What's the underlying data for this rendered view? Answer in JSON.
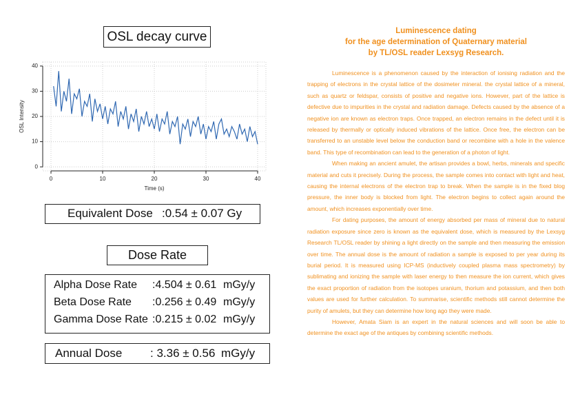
{
  "chart_data": {
    "type": "line",
    "title": "OSL decay curve",
    "x_label": "Time (s)",
    "y_label": "OSL Intensity",
    "x": [
      0.5,
      1,
      1.5,
      2,
      2.5,
      3,
      3.5,
      4,
      4.5,
      5,
      5.5,
      6,
      6.5,
      7,
      7.5,
      8,
      8.5,
      9,
      9.5,
      10,
      10.5,
      11,
      11.5,
      12,
      12.5,
      13,
      13.5,
      14,
      14.5,
      15,
      15.5,
      16,
      16.5,
      17,
      17.5,
      18,
      18.5,
      19,
      19.5,
      20,
      20.5,
      21,
      21.5,
      22,
      22.5,
      23,
      23.5,
      24,
      24.5,
      25,
      25.5,
      26,
      26.5,
      27,
      27.5,
      28,
      28.5,
      29,
      29.5,
      30,
      30.5,
      31,
      31.5,
      32,
      32.5,
      33,
      33.5,
      34,
      34.5,
      35,
      35.5,
      36,
      36.5,
      37,
      37.5,
      38,
      38.5,
      39,
      39.5,
      40
    ],
    "values": [
      32,
      24,
      38,
      22,
      30,
      26,
      35,
      21,
      29,
      27,
      31,
      20,
      26,
      24,
      29,
      18,
      27,
      22,
      25,
      19,
      24,
      17,
      23,
      21,
      26,
      16,
      22,
      19,
      24,
      15,
      21,
      18,
      23,
      14,
      20,
      17,
      22,
      16,
      19,
      15,
      21,
      14,
      19,
      17,
      22,
      13,
      18,
      16,
      20,
      9,
      17,
      15,
      19,
      12,
      18,
      16,
      20,
      13,
      17,
      11,
      16,
      14,
      18,
      11,
      17,
      19,
      13,
      15,
      12,
      16,
      14,
      11,
      17,
      13,
      15,
      10,
      16,
      12,
      14,
      9
    ],
    "color": "#2e67b1",
    "xlim": [
      -1.6,
      41.6
    ],
    "ylim": [
      -1.6,
      41.6
    ],
    "xticks": [
      0,
      10,
      20,
      30,
      40
    ],
    "yticks": [
      0,
      10,
      20,
      30,
      40
    ],
    "grid": true
  },
  "equivalent_dose": {
    "label": "Equivalent Dose",
    "value": ":0.54 ± 0.07 Gy"
  },
  "dose_rate": {
    "title": "Dose Rate",
    "rows": [
      {
        "label": "Alpha Dose Rate",
        "value": ":4.504 ± 0.61",
        "unit": "mGy/y"
      },
      {
        "label": "Beta Dose Rate",
        "value": ":0.256 ± 0.49",
        "unit": "mGy/y"
      },
      {
        "label": "Gamma Dose Rate",
        "value": ":0.215 ± 0.02",
        "unit": "mGy/y"
      }
    ]
  },
  "annual_dose": {
    "label": "Annual Dose",
    "value": ": 3.36 ± 0.56",
    "unit": "mGy/y"
  },
  "article": {
    "title": [
      "Luminescence dating",
      "for the age determination of Quaternary material",
      "by TL/OSL reader Lexsyg Research."
    ],
    "paragraphs": [
      "Luminescence is a phenomenon caused by the interaction of ionising radiation and the trapping of electrons in the crystal lattice of the dosimeter mineral. the crystal lattice of a mineral, such as quartz or feldspar, consists of positive and negative ions. However, part of the lattice is defective due to impurities in the crystal and radiation damage. Defects caused by the absence of a negative ion are known as electron traps. Once trapped, an electron remains in the defect until it is released by thermally or optically induced vibrations of the lattice. Once free, the electron can be transferred to an unstable level below the conduction band or recombine with a hole in the valence band. This type of recombination can lead to the generation of a photon of light.",
      "When making an ancient amulet, the artisan provides a bowl, herbs, minerals and specific material and cuts it precisely. During the process, the sample comes into contact with light and heat, causing the internal electrons of the electron trap to break. When the sample is in the fixed blog pressure, the inner body is blocked from light. The electron begins to collect again around the amount, which increases exponentially over time.",
      "For dating purposes, the amount of energy absorbed per mass of mineral due to natural radiation exposure since zero is known as the equivalent dose, which is measured by the Lexsyg Research TL/OSL reader by shining a light directly on the sample and then measuring the emission over time. The annual dose is the amount of radiation a sample is exposed to per year during its burial period. It is measured using ICP-MS (inductively coupled plasma mass spectrometry) by sublimating and ionizing the sample with laser energy to then measure the ion current, which gives the exact proportion of radiation from the isotopes uranium, thorium and potassium, and then both values are used for further calculation. To summarise, scientific methods still cannot determine the purity of amulets, but they can determine how long ago they were made.",
      "However, Amata Siam is an expert in the natural sciences and will soon be able to determine the exact age of the antiques by combining scientific methods."
    ]
  }
}
